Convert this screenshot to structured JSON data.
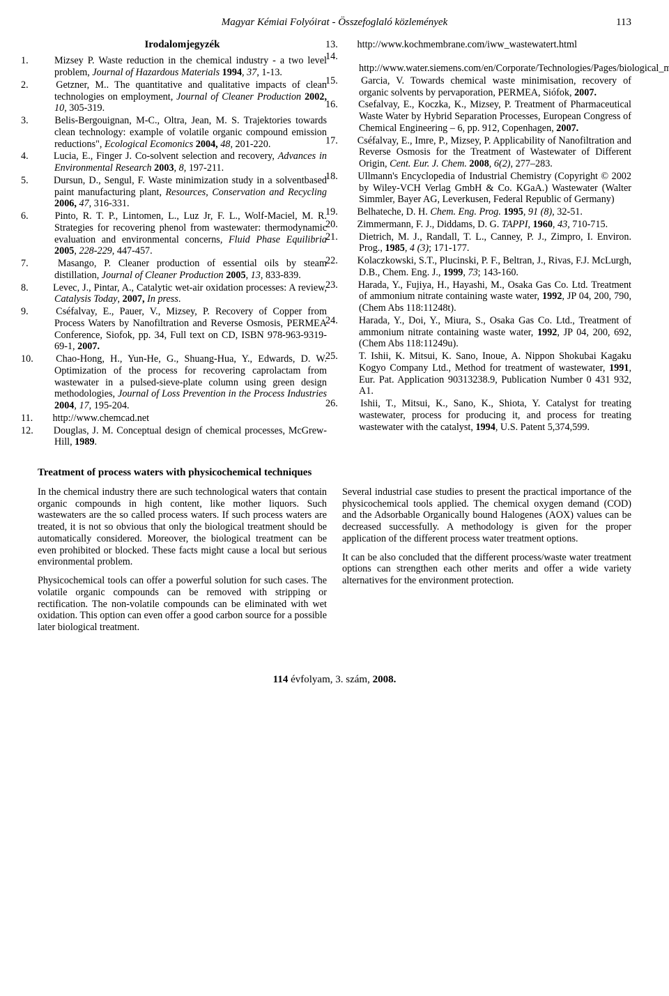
{
  "running_head": {
    "title": "Magyar Kémiai Folyóirat - Összefoglaló közlemények",
    "page_number": "113"
  },
  "bibliography_title": "Irodalomjegyzék",
  "refs_left": [
    {
      "n": "1.",
      "html": "Mizsey P. Waste reduction in the chemical industry - a two level problem, <span class='i'>Journal of Hazardous Materials</span> <span class='b'>1994</span>, <span class='i'>37</span>, 1-13."
    },
    {
      "n": "2.",
      "html": "Getzner, M.. The quantitative and qualitative impacts of clean technologies on employment<span class='i'>, Journal of Cleaner Production</span> <span class='b'>2002,</span> <span class='i'>10,</span> 305-319."
    },
    {
      "n": "3.",
      "html": "Belis-Bergouignan, M-C., Oltra, Jean, M. S. Trajektories towards clean technology: example of volatile organic compound emission reductions\", <span class='i'>Ecological Ecomonics</span> <span class='b'>2004,</span> <span class='i'>48,</span> 201-220."
    },
    {
      "n": "4.",
      "html": "Lucia, E., Finger J. Co-solvent selection and recovery, <span class='i'>Advances in Environmental Research</span> <span class='b'>2003</span>, <span class='i'>8</span>, 197-211."
    },
    {
      "n": "5.",
      "html": "Dursun, D., Sengul, F. Waste minimization study in a solventbased paint manufacturing plant, <span class='i'>Resources, Conservation and Recycling</span> <span class='b'>2006,</span> <span class='i'>47</span>, 316-331."
    },
    {
      "n": "6.",
      "html": "Pinto, R. T. P., Lintomen, L., Luz Jr, F. L., Wolf-Maciel, M. R. Strategies for recovering phenol from wastewater: thermodynamic evaluation and environmental concerns, <span class='i'>Fluid Phase Equilibria</span> <span class='b'>2005</span>, <span class='i'>228-229</span>, 447-457."
    },
    {
      "n": "7.",
      "html": "Masango, P. Cleaner production of essential oils by steam distillation, <span class='i'>Journal of Cleaner Production</span> <span class='b'>2005</span>, <span class='i'>13</span>, 833-839."
    },
    {
      "n": "8.",
      "html": "Levec, J., Pintar, A., Catalytic wet-air oxidation processes: A review, <span class='i'>Catalysis Today</span>, <span class='b'>2007,</span> <span class='i'>In press</span>."
    },
    {
      "n": "9.",
      "html": "Cséfalvay, E., Pauer, V., Mizsey, P. Recovery of Copper from Process Waters by Nanofiltration and Reverse Osmosis, PERMEA Conference, Siofok, pp. 34, Full text on CD, ISBN 978-963-9319-69-1, <span class='b'>2007.</span>"
    },
    {
      "n": "10.",
      "html": "Chao-Hong, H., Yun-He, G., Shuang-Hua, Y., Edwards, D. W. Optimization of the process for recovering caprolactam from wastewater in a pulsed-sieve-plate column using green design methodologies, <span class='i'>Journal of Loss Prevention in the Process Industries</span> <span class='b'>2004</span>, <span class='i'>17</span>, 195-204."
    },
    {
      "n": "11.",
      "html": "http://www.chemcad.net"
    },
    {
      "n": "12.",
      "html": "Douglas, J. M. Conceptual design of chemical processes, McGrew-Hill, <span class='b'>1989</span>."
    }
  ],
  "refs_right": [
    {
      "n": "13.",
      "html": "http://www.kochmembrane.com/iww_wastewatert.html"
    },
    {
      "n": "14.",
      "html": "http://www.water.siemens.com/en/Corporate/Technologies/Pages/biological_membrane_mbr.aspx"
    },
    {
      "n": "15.",
      "html": "Garcia, V. Towards chemical waste minimisation, recovery of organic solvents by pervaporation, PERMEA, Siófok, <span class='b'>2007.</span>"
    },
    {
      "n": "16.",
      "html": "Csefalvay, E., Koczka, K., Mizsey, P. Treatment of Pharmaceutical Waste Water by Hybrid Separation Processes, European Congress of Chemical Engineering – 6, pp. 912, Copenhagen, <span class='b'>2007.</span>"
    },
    {
      "n": "17.",
      "html": "Cséfalvay, E., Imre, P., Mizsey, P. Applicability of Nanofiltration and Reverse Osmosis for the Treatment of Wastewater of Different Origin, <span class='i'>Cent. Eur. J. Chem.</span> <span class='b'>2008</span>, <span class='i'>6(2)</span>, 277–283."
    },
    {
      "n": "18.",
      "html": "Ullmann's Encyclopedia of Industrial Chemistry (Copyright © 2002 by Wiley-VCH Verlag GmbH & Co. KGaA.) Wastewater (Walter Simmler, Bayer AG, Leverkusen, Federal Republic of Germany)"
    },
    {
      "n": "19.",
      "html": "Belhateche, D. H. <span class='i'>Chem. Eng. Prog.</span> <span class='b'>1995</span>, <span class='i'>91 (8),</span> 32-51."
    },
    {
      "n": "20.",
      "html": "Zimmermann, F. J., Diddams, D. G. <span class='i'>TAPPI</span>, <span class='b'>1960</span>, <span class='i'>43,</span> 710-715."
    },
    {
      "n": "21.",
      "html": "Dietrich, M. J., Randall, T. L., Canney, P. J., Zimpro, I. Environ. Prog., <span class='b'>1985</span>, <span class='i'>4 (3)</span>; 171-177."
    },
    {
      "n": "22.",
      "html": "Kolaczkowski, S.T., Plucinski, P. F., Beltran, J., Rivas, F.J. McLurgh, D.B., Chem. Eng. J., <span class='b'>1999</span>, <span class='i'>73</span>; 143-160."
    },
    {
      "n": "23.",
      "html": "Harada, Y., Fujiya, H., Hayashi, M., Osaka Gas Co. Ltd. Treatment of ammonium nitrate containing waste water, <span class='b'>1992</span>, JP 04, 200, 790, (Chem Abs 118:11248t)."
    },
    {
      "n": "24.",
      "html": "Harada, Y., Doi, Y., Miura, S., Osaka Gas Co. Ltd., Treatment of ammonium nitrate containing waste water, <span class='b'>1992</span>, JP 04, 200, 692, (Chem Abs 118:11249u)."
    },
    {
      "n": "25.",
      "html": "T. Ishii, K. Mitsui, K. Sano, Inoue, A. Nippon Shokubai Kagaku Kogyo Company Ltd., Method for treatment of wastewater, <span class='b'>1991</span>, Eur. Pat. Application 90313238.9, Publication Number 0 431 932, A1."
    },
    {
      "n": "26.",
      "html": "Ishii, T., Mitsui, K., Sano, K., Shiota, Y. Catalyst for treating wastewater, process for producing it, and process for treating wastewater with the catalyst, <span class='b'>1994</span>, U.S. Patent 5,374,599."
    }
  ],
  "abstract": {
    "title": "Treatment of process waters with physicochemical techniques",
    "left": [
      "In the chemical industry there are such technological waters that contain organic compounds in high content, like mother liquors. Such wastewaters are the so called process waters. If such process waters are treated, it is not so obvious that only the biological treatment should be automatically considered. Moreover, the biological treatment can be even prohibited or blocked. These facts might cause a local but serious environmental problem.",
      "Physicochemical tools can offer a powerful solution for such cases. The volatile organic compounds can be removed with stripping or rectification. The non-volatile compounds can be eliminated with wet oxidation. This option can even offer a good carbon source for a possible later biological treatment."
    ],
    "right": [
      "Several industrial case studies to present the practical importance of the physicochemical tools applied. The chemical oxygen demand (COD) and the Adsorbable Organically bound Halogenes (AOX) values can be decreased successfully. A methodology is given for the proper application of the different process water treatment options.",
      "It can be also concluded that the different process/waste water treatment options can strengthen each other merits and offer a wide variety alternatives for the environment protection."
    ]
  },
  "footer": {
    "volume": "114",
    "label_mid": " évfolyam, 3. szám, ",
    "year": "2008."
  }
}
